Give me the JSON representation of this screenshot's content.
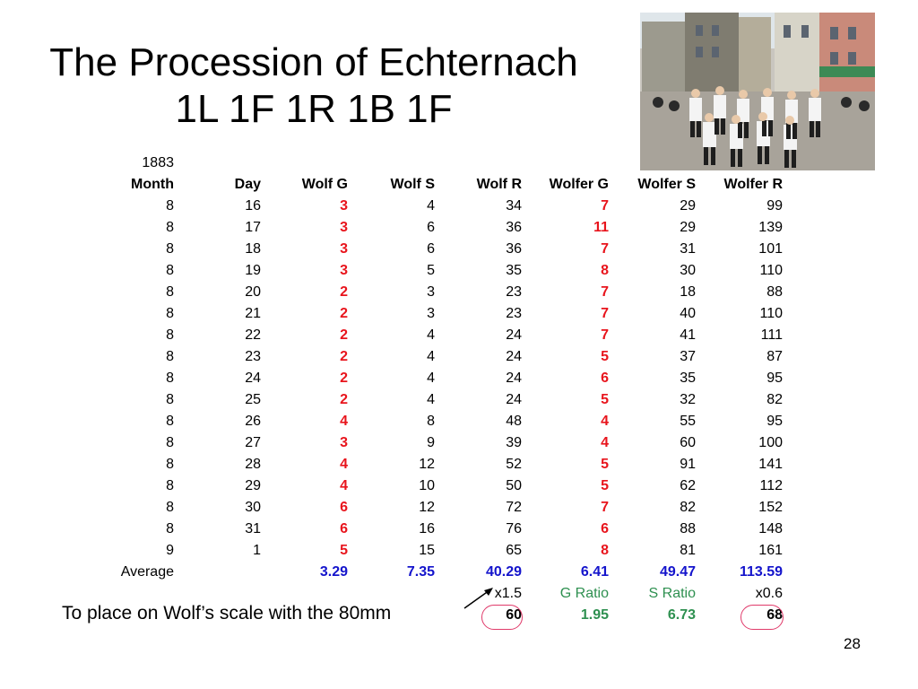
{
  "title_line1": "The Procession of Echternach",
  "title_line2": "1L 1F 1R 1B 1F",
  "year": "1883",
  "headers": [
    "Month",
    "Day",
    "Wolf G",
    "Wolf S",
    "Wolf R",
    "Wolfer G",
    "Wolfer S",
    "Wolfer R"
  ],
  "rows": [
    [
      "8",
      "16",
      "3",
      "4",
      "34",
      "7",
      "29",
      "99"
    ],
    [
      "8",
      "17",
      "3",
      "6",
      "36",
      "11",
      "29",
      "139"
    ],
    [
      "8",
      "18",
      "3",
      "6",
      "36",
      "7",
      "31",
      "101"
    ],
    [
      "8",
      "19",
      "3",
      "5",
      "35",
      "8",
      "30",
      "110"
    ],
    [
      "8",
      "20",
      "2",
      "3",
      "23",
      "7",
      "18",
      "88"
    ],
    [
      "8",
      "21",
      "2",
      "3",
      "23",
      "7",
      "40",
      "110"
    ],
    [
      "8",
      "22",
      "2",
      "4",
      "24",
      "7",
      "41",
      "111"
    ],
    [
      "8",
      "23",
      "2",
      "4",
      "24",
      "5",
      "37",
      "87"
    ],
    [
      "8",
      "24",
      "2",
      "4",
      "24",
      "6",
      "35",
      "95"
    ],
    [
      "8",
      "25",
      "2",
      "4",
      "24",
      "5",
      "32",
      "82"
    ],
    [
      "8",
      "26",
      "4",
      "8",
      "48",
      "4",
      "55",
      "95"
    ],
    [
      "8",
      "27",
      "3",
      "9",
      "39",
      "4",
      "60",
      "100"
    ],
    [
      "8",
      "28",
      "4",
      "12",
      "52",
      "5",
      "91",
      "141"
    ],
    [
      "8",
      "29",
      "4",
      "10",
      "50",
      "5",
      "62",
      "112"
    ],
    [
      "8",
      "30",
      "6",
      "12",
      "72",
      "7",
      "82",
      "152"
    ],
    [
      "8",
      "31",
      "6",
      "16",
      "76",
      "6",
      "88",
      "148"
    ],
    [
      "9",
      "1",
      "5",
      "15",
      "65",
      "8",
      "81",
      "161"
    ]
  ],
  "average": {
    "label": "Average",
    "wolf_g": "3.29",
    "wolf_s": "7.35",
    "wolf_r": "40.29",
    "wolfer_g": "6.41",
    "wolfer_s": "49.47",
    "wolfer_r": "113.59"
  },
  "factors": {
    "wolf_r": "x1.5",
    "wolfer_g": "G Ratio",
    "wolfer_s": "S Ratio",
    "wolfer_r": "x0.6"
  },
  "results": {
    "wolf_r": "60",
    "wolfer_g": "1.95",
    "wolfer_s": "6.73",
    "wolfer_r": "68"
  },
  "note": "To place on Wolf’s scale with the 80mm",
  "page_number": "28",
  "colors": {
    "red": "#e8141c",
    "blue": "#1414cc",
    "green": "#2e9050",
    "circle": "#e03a6a"
  }
}
